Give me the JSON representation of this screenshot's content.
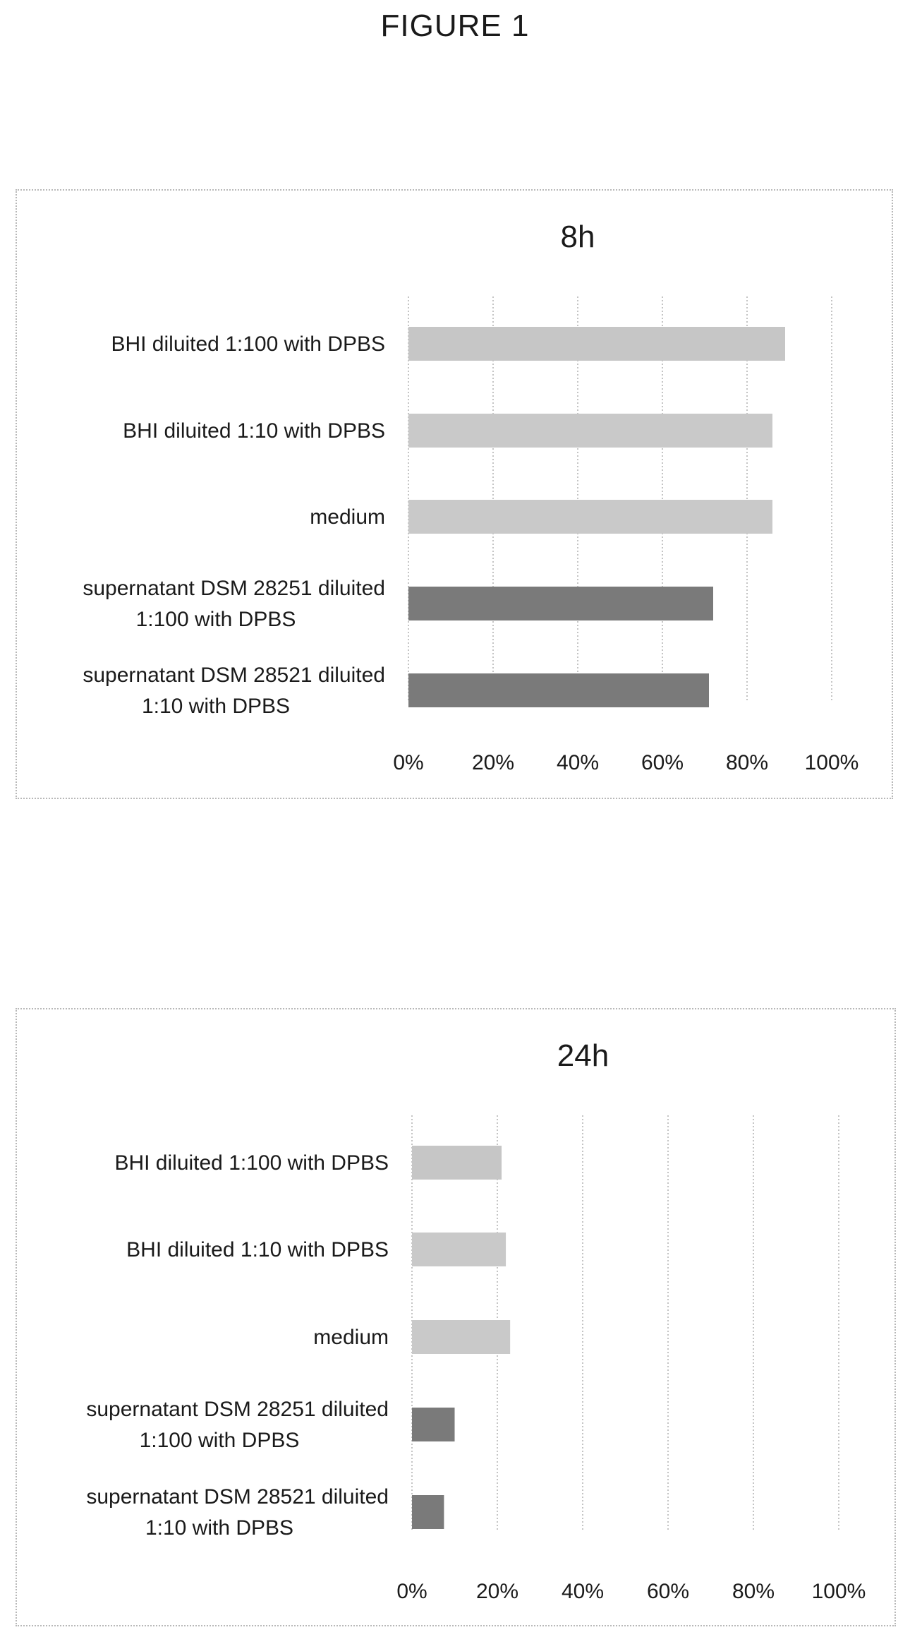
{
  "figure": {
    "title": "FIGURE 1"
  },
  "chart_data": [
    {
      "type": "bar",
      "orientation": "horizontal",
      "title": "8h",
      "categories": [
        "BHI diluited 1:100 with DPBS",
        "BHI diluited 1:10 with DPBS",
        "medium",
        "supernatant DSM 28251 diluited 1:100 with DPBS",
        "supernatant DSM 28521 diluited 1:10 with DPBS"
      ],
      "category_lines": [
        [
          "BHI diluited 1:100 with DPBS"
        ],
        [
          "BHI diluited 1:10 with DPBS"
        ],
        [
          "medium"
        ],
        [
          "supernatant DSM 28251 diluited",
          "1:100 with DPBS"
        ],
        [
          "supernatant DSM 28521 diluited",
          "1:10 with DPBS"
        ]
      ],
      "values": [
        89,
        86,
        86,
        72,
        71
      ],
      "bar_colors": [
        "#c6c6c6",
        "#c9c9c9",
        "#c9c9c9",
        "#7a7a7a",
        "#7a7a7a"
      ],
      "xlim": [
        0,
        100
      ],
      "xticks": [
        "0%",
        "20%",
        "40%",
        "60%",
        "80%",
        "100%"
      ],
      "grid": "dotted-vertical",
      "xlabel": "",
      "ylabel": ""
    },
    {
      "type": "bar",
      "orientation": "horizontal",
      "title": "24h",
      "categories": [
        "BHI diluited 1:100 with DPBS",
        "BHI diluited 1:10 with DPBS",
        "medium",
        "supernatant DSM 28251 diluited 1:100 with DPBS",
        "supernatant DSM 28521 diluited 1:10 with DPBS"
      ],
      "category_lines": [
        [
          "BHI diluited 1:100 with DPBS"
        ],
        [
          "BHI diluited 1:10 with DPBS"
        ],
        [
          "medium"
        ],
        [
          "supernatant DSM 28251 diluited",
          "1:100 with DPBS"
        ],
        [
          "supernatant DSM 28521 diluited",
          "1:10 with DPBS"
        ]
      ],
      "values": [
        21,
        22,
        23,
        10,
        7.5
      ],
      "bar_colors": [
        "#c6c6c6",
        "#c9c9c9",
        "#c9c9c9",
        "#7a7a7a",
        "#7a7a7a"
      ],
      "xlim": [
        0,
        100
      ],
      "xticks": [
        "0%",
        "20%",
        "40%",
        "60%",
        "80%",
        "100%"
      ],
      "grid": "dotted-vertical",
      "xlabel": "",
      "ylabel": ""
    }
  ]
}
